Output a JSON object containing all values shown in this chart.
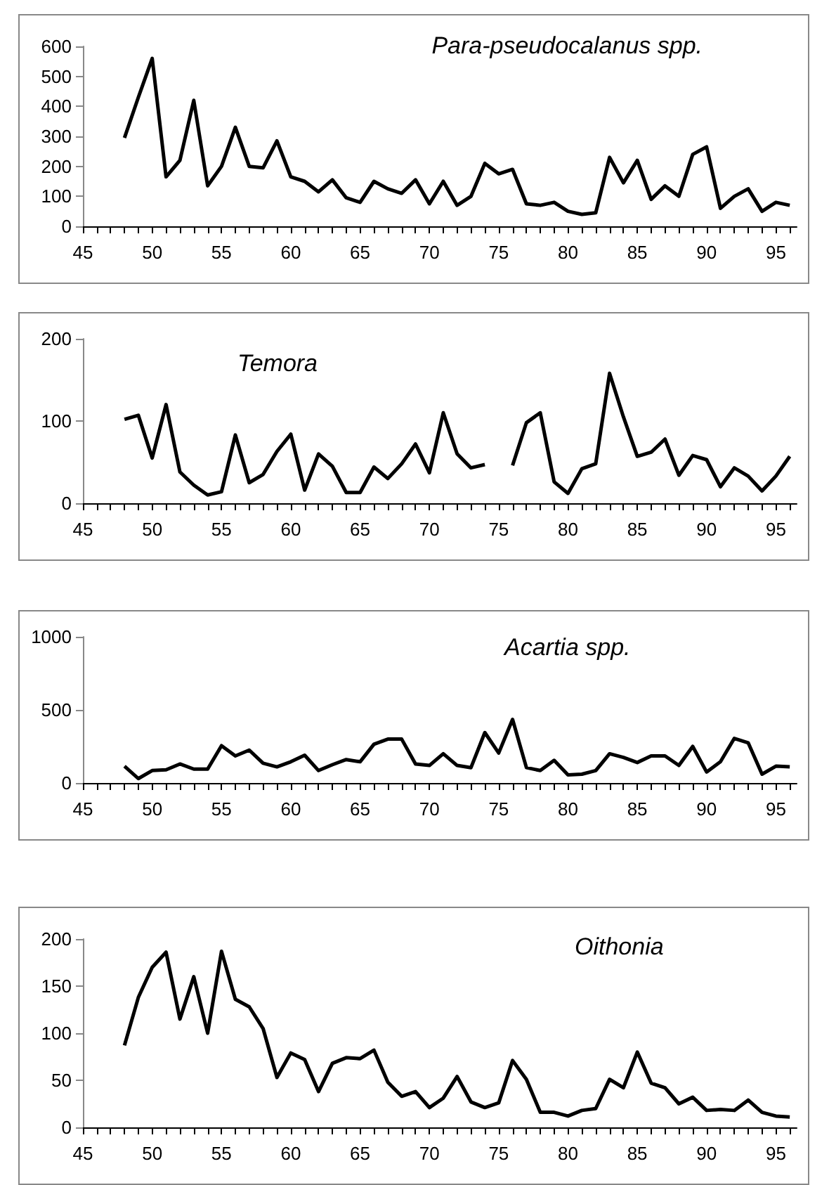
{
  "chart_data": [
    {
      "type": "line",
      "title": "Para-pseudocalanus spp.",
      "color": "#000000",
      "marker": "none",
      "grid": false,
      "x": [
        48,
        49,
        50,
        51,
        52,
        53,
        54,
        55,
        56,
        57,
        58,
        59,
        60,
        61,
        62,
        63,
        64,
        65,
        66,
        67,
        68,
        69,
        70,
        71,
        72,
        73,
        74,
        75,
        76,
        77,
        78,
        79,
        80,
        81,
        82,
        83,
        84,
        85,
        86,
        87,
        88,
        89,
        90,
        91,
        92,
        93,
        94,
        95,
        96
      ],
      "values": [
        295,
        430,
        560,
        165,
        220,
        420,
        135,
        200,
        330,
        200,
        195,
        285,
        165,
        150,
        115,
        155,
        95,
        80,
        150,
        125,
        110,
        155,
        75,
        150,
        70,
        100,
        210,
        175,
        190,
        75,
        70,
        80,
        50,
        40,
        45,
        230,
        145,
        220,
        90,
        135,
        100,
        240,
        265,
        60,
        100,
        125,
        50,
        80,
        70
      ],
      "xlim": [
        45,
        96.5
      ],
      "xticks": [
        45,
        {
          "value": 46,
          "label": null
        },
        {
          "value": 47,
          "label": null
        },
        {
          "value": 48,
          "label": null
        },
        {
          "value": 49,
          "label": null
        },
        50,
        {
          "value": 51,
          "label": null
        },
        {
          "value": 52,
          "label": null
        },
        {
          "value": 53,
          "label": null
        },
        {
          "value": 54,
          "label": null
        },
        55,
        {
          "value": 56,
          "label": null
        },
        {
          "value": 57,
          "label": null
        },
        {
          "value": 58,
          "label": null
        },
        {
          "value": 59,
          "label": null
        },
        60,
        {
          "value": 61,
          "label": null
        },
        {
          "value": 62,
          "label": null
        },
        {
          "value": 63,
          "label": null
        },
        {
          "value": 64,
          "label": null
        },
        65,
        {
          "value": 66,
          "label": null
        },
        {
          "value": 67,
          "label": null
        },
        {
          "value": 68,
          "label": null
        },
        {
          "value": 69,
          "label": null
        },
        70,
        {
          "value": 71,
          "label": null
        },
        {
          "value": 72,
          "label": null
        },
        {
          "value": 73,
          "label": null
        },
        {
          "value": 74,
          "label": null
        },
        75,
        {
          "value": 76,
          "label": null
        },
        {
          "value": 77,
          "label": null
        },
        {
          "value": 78,
          "label": null
        },
        {
          "value": 79,
          "label": null
        },
        80,
        {
          "value": 81,
          "label": null
        },
        {
          "value": 82,
          "label": null
        },
        {
          "value": 83,
          "label": null
        },
        {
          "value": 84,
          "label": null
        },
        85,
        {
          "value": 86,
          "label": null
        },
        {
          "value": 87,
          "label": null
        },
        {
          "value": 88,
          "label": null
        },
        {
          "value": 89,
          "label": null
        },
        90,
        {
          "value": 91,
          "label": null
        },
        {
          "value": 92,
          "label": null
        },
        {
          "value": 93,
          "label": null
        },
        {
          "value": 94,
          "label": null
        },
        95,
        {
          "value": 96,
          "label": null
        }
      ],
      "ylim": [
        0,
        600
      ],
      "yticks": [
        0,
        100,
        200,
        300,
        400,
        500,
        600
      ]
    },
    {
      "type": "line",
      "title": "Temora",
      "color": "#000000",
      "marker": "none",
      "grid": false,
      "x": [
        48,
        49,
        50,
        51,
        52,
        53,
        54,
        55,
        56,
        57,
        58,
        59,
        60,
        61,
        62,
        63,
        64,
        65,
        66,
        67,
        68,
        69,
        70,
        71,
        72,
        73,
        74,
        75,
        76,
        77,
        78,
        79,
        80,
        81,
        82,
        83,
        84,
        85,
        86,
        87,
        88,
        89,
        90,
        91,
        92,
        93,
        94,
        95,
        96
      ],
      "values": [
        102,
        107,
        55,
        120,
        38,
        22,
        10,
        14,
        83,
        25,
        35,
        63,
        84,
        16,
        60,
        45,
        13,
        13,
        44,
        30,
        48,
        72,
        37,
        110,
        60,
        43,
        47,
        null,
        46,
        98,
        110,
        26,
        12,
        42,
        48,
        158,
        105,
        57,
        62,
        78,
        34,
        58,
        53,
        20,
        43,
        33,
        15,
        33,
        57
      ],
      "xlim": [
        45,
        96.5
      ],
      "xticks": [
        45,
        {
          "value": 46,
          "label": null
        },
        {
          "value": 47,
          "label": null
        },
        {
          "value": 48,
          "label": null
        },
        {
          "value": 49,
          "label": null
        },
        50,
        {
          "value": 51,
          "label": null
        },
        {
          "value": 52,
          "label": null
        },
        {
          "value": 53,
          "label": null
        },
        {
          "value": 54,
          "label": null
        },
        55,
        {
          "value": 56,
          "label": null
        },
        {
          "value": 57,
          "label": null
        },
        {
          "value": 58,
          "label": null
        },
        {
          "value": 59,
          "label": null
        },
        60,
        {
          "value": 61,
          "label": null
        },
        {
          "value": 62,
          "label": null
        },
        {
          "value": 63,
          "label": null
        },
        {
          "value": 64,
          "label": null
        },
        65,
        {
          "value": 66,
          "label": null
        },
        {
          "value": 67,
          "label": null
        },
        {
          "value": 68,
          "label": null
        },
        {
          "value": 69,
          "label": null
        },
        70,
        {
          "value": 71,
          "label": null
        },
        {
          "value": 72,
          "label": null
        },
        {
          "value": 73,
          "label": null
        },
        {
          "value": 74,
          "label": null
        },
        75,
        {
          "value": 76,
          "label": null
        },
        {
          "value": 77,
          "label": null
        },
        {
          "value": 78,
          "label": null
        },
        {
          "value": 79,
          "label": null
        },
        80,
        {
          "value": 81,
          "label": null
        },
        {
          "value": 82,
          "label": null
        },
        {
          "value": 83,
          "label": null
        },
        {
          "value": 84,
          "label": null
        },
        85,
        {
          "value": 86,
          "label": null
        },
        {
          "value": 87,
          "label": null
        },
        {
          "value": 88,
          "label": null
        },
        {
          "value": 89,
          "label": null
        },
        90,
        {
          "value": 91,
          "label": null
        },
        {
          "value": 92,
          "label": null
        },
        {
          "value": 93,
          "label": null
        },
        {
          "value": 94,
          "label": null
        },
        95,
        {
          "value": 96,
          "label": null
        }
      ],
      "ylim": [
        0,
        200
      ],
      "yticks": [
        0,
        100,
        200
      ]
    },
    {
      "type": "line",
      "title": "Acartia spp.",
      "color": "#000000",
      "marker": "none",
      "grid": false,
      "x": [
        48,
        49,
        50,
        51,
        52,
        53,
        54,
        55,
        56,
        57,
        58,
        59,
        60,
        61,
        62,
        63,
        64,
        65,
        66,
        67,
        68,
        69,
        70,
        71,
        72,
        73,
        74,
        75,
        76,
        77,
        78,
        79,
        80,
        81,
        82,
        83,
        84,
        85,
        86,
        87,
        88,
        89,
        90,
        91,
        92,
        93,
        94,
        95,
        96
      ],
      "values": [
        115,
        30,
        85,
        90,
        130,
        95,
        95,
        255,
        185,
        225,
        135,
        110,
        145,
        190,
        85,
        125,
        160,
        145,
        265,
        300,
        300,
        130,
        120,
        200,
        120,
        105,
        345,
        205,
        435,
        105,
        85,
        155,
        55,
        60,
        85,
        200,
        175,
        140,
        185,
        185,
        120,
        250,
        75,
        145,
        305,
        275,
        60,
        115,
        110
      ],
      "xlim": [
        45,
        96.5
      ],
      "xticks": [
        45,
        {
          "value": 46,
          "label": null
        },
        {
          "value": 47,
          "label": null
        },
        {
          "value": 48,
          "label": null
        },
        {
          "value": 49,
          "label": null
        },
        50,
        {
          "value": 51,
          "label": null
        },
        {
          "value": 52,
          "label": null
        },
        {
          "value": 53,
          "label": null
        },
        {
          "value": 54,
          "label": null
        },
        55,
        {
          "value": 56,
          "label": null
        },
        {
          "value": 57,
          "label": null
        },
        {
          "value": 58,
          "label": null
        },
        {
          "value": 59,
          "label": null
        },
        60,
        {
          "value": 61,
          "label": null
        },
        {
          "value": 62,
          "label": null
        },
        {
          "value": 63,
          "label": null
        },
        {
          "value": 64,
          "label": null
        },
        65,
        {
          "value": 66,
          "label": null
        },
        {
          "value": 67,
          "label": null
        },
        {
          "value": 68,
          "label": null
        },
        {
          "value": 69,
          "label": null
        },
        70,
        {
          "value": 71,
          "label": null
        },
        {
          "value": 72,
          "label": null
        },
        {
          "value": 73,
          "label": null
        },
        {
          "value": 74,
          "label": null
        },
        75,
        {
          "value": 76,
          "label": null
        },
        {
          "value": 77,
          "label": null
        },
        {
          "value": 78,
          "label": null
        },
        {
          "value": 79,
          "label": null
        },
        80,
        {
          "value": 81,
          "label": null
        },
        {
          "value": 82,
          "label": null
        },
        {
          "value": 83,
          "label": null
        },
        {
          "value": 84,
          "label": null
        },
        85,
        {
          "value": 86,
          "label": null
        },
        {
          "value": 87,
          "label": null
        },
        {
          "value": 88,
          "label": null
        },
        {
          "value": 89,
          "label": null
        },
        90,
        {
          "value": 91,
          "label": null
        },
        {
          "value": 92,
          "label": null
        },
        {
          "value": 93,
          "label": null
        },
        {
          "value": 94,
          "label": null
        },
        95,
        {
          "value": 96,
          "label": null
        }
      ],
      "ylim": [
        0,
        1000
      ],
      "yticks": [
        0,
        500,
        1000
      ]
    },
    {
      "type": "line",
      "title": "Oithonia",
      "color": "#000000",
      "marker": "none",
      "grid": false,
      "x": [
        48,
        49,
        50,
        51,
        52,
        53,
        54,
        55,
        56,
        57,
        58,
        59,
        60,
        61,
        62,
        63,
        64,
        65,
        66,
        67,
        68,
        69,
        70,
        71,
        72,
        73,
        74,
        75,
        76,
        77,
        78,
        79,
        80,
        81,
        82,
        83,
        84,
        85,
        86,
        87,
        88,
        89,
        90,
        91,
        92,
        93,
        94,
        95,
        96
      ],
      "values": [
        87,
        138,
        170,
        186,
        115,
        160,
        100,
        187,
        136,
        128,
        105,
        53,
        79,
        72,
        38,
        68,
        74,
        73,
        82,
        48,
        33,
        38,
        21,
        31,
        54,
        27,
        21,
        26,
        71,
        51,
        16,
        16,
        12,
        18,
        20,
        51,
        42,
        80,
        47,
        42,
        25,
        32,
        18,
        19,
        18,
        29,
        16,
        12,
        11
      ],
      "xlim": [
        45,
        96.5
      ],
      "xticks": [
        45,
        {
          "value": 46,
          "label": null
        },
        {
          "value": 47,
          "label": null
        },
        {
          "value": 48,
          "label": null
        },
        {
          "value": 49,
          "label": null
        },
        50,
        {
          "value": 51,
          "label": null
        },
        {
          "value": 52,
          "label": null
        },
        {
          "value": 53,
          "label": null
        },
        {
          "value": 54,
          "label": null
        },
        55,
        {
          "value": 56,
          "label": null
        },
        {
          "value": 57,
          "label": null
        },
        {
          "value": 58,
          "label": null
        },
        {
          "value": 59,
          "label": null
        },
        60,
        {
          "value": 61,
          "label": null
        },
        {
          "value": 62,
          "label": null
        },
        {
          "value": 63,
          "label": null
        },
        {
          "value": 64,
          "label": null
        },
        65,
        {
          "value": 66,
          "label": null
        },
        {
          "value": 67,
          "label": null
        },
        {
          "value": 68,
          "label": null
        },
        {
          "value": 69,
          "label": null
        },
        70,
        {
          "value": 71,
          "label": null
        },
        {
          "value": 72,
          "label": null
        },
        {
          "value": 73,
          "label": null
        },
        {
          "value": 74,
          "label": null
        },
        75,
        {
          "value": 76,
          "label": null
        },
        {
          "value": 77,
          "label": null
        },
        {
          "value": 78,
          "label": null
        },
        {
          "value": 79,
          "label": null
        },
        80,
        {
          "value": 81,
          "label": null
        },
        {
          "value": 82,
          "label": null
        },
        {
          "value": 83,
          "label": null
        },
        {
          "value": 84,
          "label": null
        },
        85,
        {
          "value": 86,
          "label": null
        },
        {
          "value": 87,
          "label": null
        },
        {
          "value": 88,
          "label": null
        },
        {
          "value": 89,
          "label": null
        },
        90,
        {
          "value": 91,
          "label": null
        },
        {
          "value": 92,
          "label": null
        },
        {
          "value": 93,
          "label": null
        },
        {
          "value": 94,
          "label": null
        },
        95,
        {
          "value": 96,
          "label": null
        }
      ],
      "ylim": [
        0,
        200
      ],
      "yticks": [
        0,
        50,
        100,
        150,
        200
      ]
    }
  ]
}
